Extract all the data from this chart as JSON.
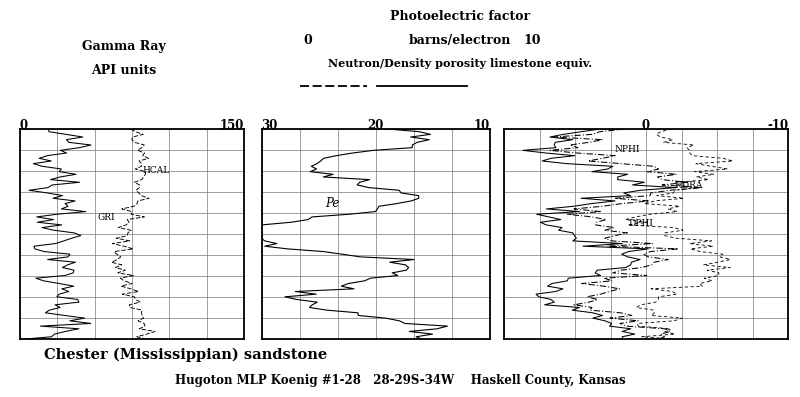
{
  "title_line1": "Photoelectric factor",
  "title_line2": "barns/electron",
  "title_line3": "Neutron/Density porosity limestone equiv.",
  "gamma_ray_label1": "Gamma Ray",
  "gamma_ray_label2": "API units",
  "bottom_label1": "Chester (Mississippian) sandstone",
  "bottom_label2": "Hugoton MLP Koenig #1-28   28-29S-34W    Haskell County, Kansas",
  "background_color": "#ffffff",
  "n_points": 80,
  "depth_min": 0,
  "depth_max": 1
}
